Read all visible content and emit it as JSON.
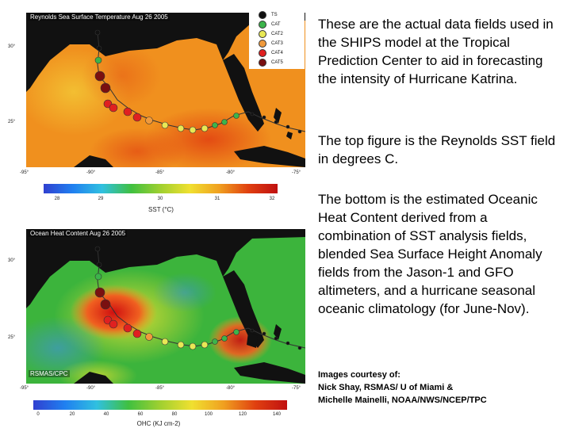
{
  "legend": [
    {
      "label": "TS",
      "color": "#111111"
    },
    {
      "label": "CAT",
      "color": "#3cb44b"
    },
    {
      "label": "CAT2",
      "color": "#e8e855"
    },
    {
      "label": "CAT3",
      "color": "#f09a3c"
    },
    {
      "label": "CAT4",
      "color": "#e02020"
    },
    {
      "label": "CAT5",
      "color": "#7a1010"
    }
  ],
  "sst_map": {
    "title": "Reynolds Sea Surface Temperature Aug 26 2005",
    "lat_labels": [
      "30°",
      "25°"
    ],
    "lon_labels": [
      "-95°",
      "-90°",
      "-85°",
      "-80°",
      "-75°"
    ],
    "colorbar": {
      "ticks": [
        "28",
        "29",
        "30",
        "31",
        "32"
      ],
      "title": "SST (°C)"
    }
  },
  "ohc_map": {
    "title": "Ocean Heat Content Aug 26 2005",
    "lat_labels": [
      "30°",
      "25°"
    ],
    "lon_labels": [
      "-95°",
      "-90°",
      "-85°",
      "-80°",
      "-75°"
    ],
    "colorbar": {
      "ticks": [
        "0",
        "20",
        "40",
        "60",
        "80",
        "100",
        "120",
        "140"
      ],
      "title": "OHC (KJ cm-2)"
    },
    "source": "RSMAS/CPC"
  },
  "description": {
    "p1": "These are the actual data fields used in the SHIPS model at the Tropical Prediction Center to aid in forecasting the intensity of Hurricane Katrina.",
    "p2": "The top figure is the Reynolds SST field in degrees C.",
    "p3": "The bottom is the estimated Oceanic Heat Content derived from a combination of SST analysis fields, blended Sea Surface Height Anomaly fields from the Jason-1 and GFO altimeters, and a hurricane seasonal oceanic climatology (for June-Nov)."
  },
  "credits": {
    "line1": "Images courtesy of:",
    "line2": "Nick Shay, RSMAS/ U of Miami &",
    "line3": "Michelle Mainelli, NOAA/NWS/NCEP/TPC"
  },
  "colors": {
    "land": "#111111",
    "sst_warm": "#f08a1c",
    "sst_hot": "#e03a10",
    "ohc_green": "#40b840",
    "ohc_cool": "#40a0e0",
    "ohc_hot": "#e02020"
  }
}
